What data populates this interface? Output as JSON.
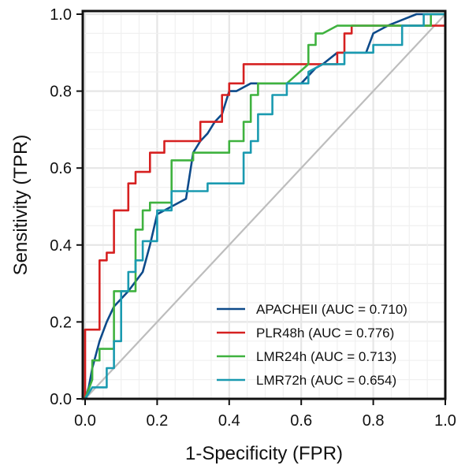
{
  "chart_data": {
    "type": "line",
    "xlabel": "1-Specificity (FPR)",
    "ylabel": "Sensitivity (TPR)",
    "xlim": [
      0,
      1
    ],
    "ylim": [
      0,
      1
    ],
    "x_ticks": [
      "0.0",
      "0.2",
      "0.4",
      "0.6",
      "0.8",
      "1.0"
    ],
    "y_ticks": [
      "0.0",
      "0.2",
      "0.4",
      "0.6",
      "0.8",
      "1.0"
    ],
    "grid": true,
    "legend_position": "bottom-right",
    "reference_line": {
      "from": [
        0,
        0
      ],
      "to": [
        1,
        1
      ],
      "color": "#bdbdbd"
    },
    "series": [
      {
        "name": "APACHEII (AUC = 0.710)",
        "color": "#0d4a8a",
        "points": [
          [
            0,
            0
          ],
          [
            0.01,
            0.03
          ],
          [
            0.02,
            0.08
          ],
          [
            0.04,
            0.15
          ],
          [
            0.06,
            0.2
          ],
          [
            0.08,
            0.24
          ],
          [
            0.12,
            0.28
          ],
          [
            0.16,
            0.33
          ],
          [
            0.18,
            0.4
          ],
          [
            0.2,
            0.48
          ],
          [
            0.24,
            0.5
          ],
          [
            0.28,
            0.52
          ],
          [
            0.3,
            0.64
          ],
          [
            0.32,
            0.67
          ],
          [
            0.34,
            0.69
          ],
          [
            0.36,
            0.72
          ],
          [
            0.38,
            0.74
          ],
          [
            0.4,
            0.8
          ],
          [
            0.42,
            0.8
          ],
          [
            0.46,
            0.82
          ],
          [
            0.6,
            0.82
          ],
          [
            0.64,
            0.86
          ],
          [
            0.66,
            0.87
          ],
          [
            0.7,
            0.9
          ],
          [
            0.78,
            0.9
          ],
          [
            0.8,
            0.95
          ],
          [
            0.84,
            0.97
          ],
          [
            0.92,
            1.0
          ],
          [
            1.0,
            1.0
          ]
        ]
      },
      {
        "name": "PLR48h (AUC = 0.776)",
        "color": "#d62020",
        "points": [
          [
            0,
            0
          ],
          [
            0,
            0.18
          ],
          [
            0.04,
            0.18
          ],
          [
            0.04,
            0.36
          ],
          [
            0.06,
            0.36
          ],
          [
            0.06,
            0.38
          ],
          [
            0.08,
            0.38
          ],
          [
            0.08,
            0.49
          ],
          [
            0.12,
            0.49
          ],
          [
            0.12,
            0.56
          ],
          [
            0.14,
            0.56
          ],
          [
            0.14,
            0.59
          ],
          [
            0.18,
            0.59
          ],
          [
            0.18,
            0.64
          ],
          [
            0.22,
            0.64
          ],
          [
            0.22,
            0.67
          ],
          [
            0.32,
            0.67
          ],
          [
            0.32,
            0.72
          ],
          [
            0.38,
            0.72
          ],
          [
            0.38,
            0.79
          ],
          [
            0.4,
            0.79
          ],
          [
            0.4,
            0.82
          ],
          [
            0.44,
            0.82
          ],
          [
            0.44,
            0.87
          ],
          [
            0.7,
            0.87
          ],
          [
            0.7,
            0.9
          ],
          [
            0.72,
            0.9
          ],
          [
            0.72,
            0.95
          ],
          [
            0.74,
            0.95
          ],
          [
            0.74,
            0.97
          ],
          [
            1.0,
            0.97
          ],
          [
            1.0,
            1.0
          ]
        ]
      },
      {
        "name": "LMR24h (AUC = 0.713)",
        "color": "#3fb23f",
        "points": [
          [
            0,
            0
          ],
          [
            0.02,
            0.05
          ],
          [
            0.02,
            0.1
          ],
          [
            0.04,
            0.1
          ],
          [
            0.04,
            0.13
          ],
          [
            0.08,
            0.13
          ],
          [
            0.08,
            0.28
          ],
          [
            0.14,
            0.28
          ],
          [
            0.14,
            0.44
          ],
          [
            0.16,
            0.44
          ],
          [
            0.16,
            0.49
          ],
          [
            0.18,
            0.49
          ],
          [
            0.18,
            0.51
          ],
          [
            0.24,
            0.51
          ],
          [
            0.24,
            0.62
          ],
          [
            0.3,
            0.62
          ],
          [
            0.3,
            0.64
          ],
          [
            0.4,
            0.64
          ],
          [
            0.4,
            0.67
          ],
          [
            0.44,
            0.67
          ],
          [
            0.44,
            0.72
          ],
          [
            0.46,
            0.72
          ],
          [
            0.46,
            0.79
          ],
          [
            0.48,
            0.79
          ],
          [
            0.48,
            0.82
          ],
          [
            0.56,
            0.82
          ],
          [
            0.62,
            0.87
          ],
          [
            0.62,
            0.92
          ],
          [
            0.64,
            0.92
          ],
          [
            0.64,
            0.95
          ],
          [
            0.66,
            0.95
          ],
          [
            0.7,
            0.97
          ],
          [
            0.96,
            0.97
          ],
          [
            0.96,
            1.0
          ],
          [
            1.0,
            1.0
          ]
        ]
      },
      {
        "name": "LMR72h (AUC = 0.654)",
        "color": "#1a9ab0",
        "points": [
          [
            0,
            0
          ],
          [
            0.02,
            0.03
          ],
          [
            0.06,
            0.03
          ],
          [
            0.06,
            0.08
          ],
          [
            0.08,
            0.08
          ],
          [
            0.08,
            0.15
          ],
          [
            0.1,
            0.15
          ],
          [
            0.1,
            0.28
          ],
          [
            0.12,
            0.28
          ],
          [
            0.12,
            0.33
          ],
          [
            0.14,
            0.33
          ],
          [
            0.14,
            0.36
          ],
          [
            0.16,
            0.36
          ],
          [
            0.16,
            0.41
          ],
          [
            0.2,
            0.41
          ],
          [
            0.2,
            0.49
          ],
          [
            0.24,
            0.49
          ],
          [
            0.24,
            0.54
          ],
          [
            0.34,
            0.54
          ],
          [
            0.34,
            0.56
          ],
          [
            0.44,
            0.56
          ],
          [
            0.44,
            0.64
          ],
          [
            0.46,
            0.64
          ],
          [
            0.46,
            0.67
          ],
          [
            0.48,
            0.67
          ],
          [
            0.48,
            0.74
          ],
          [
            0.52,
            0.74
          ],
          [
            0.52,
            0.79
          ],
          [
            0.56,
            0.79
          ],
          [
            0.56,
            0.82
          ],
          [
            0.62,
            0.82
          ],
          [
            0.62,
            0.85
          ],
          [
            0.66,
            0.87
          ],
          [
            0.72,
            0.87
          ],
          [
            0.72,
            0.9
          ],
          [
            0.8,
            0.9
          ],
          [
            0.8,
            0.92
          ],
          [
            0.88,
            0.92
          ],
          [
            0.88,
            0.97
          ],
          [
            0.94,
            0.97
          ],
          [
            0.94,
            1.0
          ],
          [
            1.0,
            1.0
          ]
        ]
      }
    ]
  }
}
